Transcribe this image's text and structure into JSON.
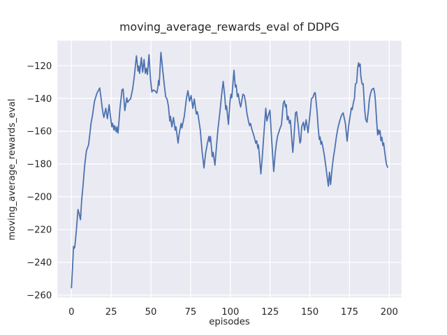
{
  "figure": {
    "title": "moving_average_rewards_eval of DDPG",
    "xlabel": "episodes",
    "ylabel": "moving_average_rewards_eval"
  },
  "chart_data": {
    "type": "line",
    "title": "moving_average_rewards_eval of DDPG",
    "xlabel": "episodes",
    "ylabel": "moving_average_rewards_eval",
    "grid": true,
    "legend_position": "none",
    "plot_bg_color": "#eaeaf2",
    "grid_color": "#ffffff",
    "line_color": "#4c72b0",
    "text_color": "#262626",
    "xlim": [
      -8.8,
      207.7
    ],
    "ylim": [
      -261.4,
      -104.8
    ],
    "x_ticks": {
      "values": [
        0,
        25,
        50,
        75,
        100,
        125,
        150,
        175,
        200
      ],
      "labels": [
        "0",
        "25",
        "50",
        "75",
        "100",
        "125",
        "150",
        "175",
        "200"
      ]
    },
    "y_ticks": {
      "values": [
        -120,
        -140,
        -160,
        -180,
        -200,
        -220,
        -240,
        -260
      ],
      "labels": [
        "−120",
        "−140",
        "−160",
        "−180",
        "−200",
        "−220",
        "−240",
        "−260"
      ]
    },
    "series": [
      {
        "name": "moving_average_rewards_eval",
        "points": [
          [
            0,
            -255.5
          ],
          [
            0.7,
            -243
          ],
          [
            1.3,
            -230.3
          ],
          [
            1.7,
            -231.5
          ],
          [
            2.1,
            -230.5
          ],
          [
            3,
            -221.5
          ],
          [
            4.1,
            -207.8
          ],
          [
            4.9,
            -210.5
          ],
          [
            5.7,
            -214
          ],
          [
            6.4,
            -202.3
          ],
          [
            7.3,
            -193
          ],
          [
            8.3,
            -181
          ],
          [
            9.4,
            -172
          ],
          [
            10,
            -170.4
          ],
          [
            10.8,
            -168.1
          ],
          [
            11.6,
            -161.5
          ],
          [
            12.3,
            -155.2
          ],
          [
            13.3,
            -150
          ],
          [
            14.5,
            -141.7
          ],
          [
            16,
            -136.9
          ],
          [
            17.8,
            -133.6
          ],
          [
            18.6,
            -139.6
          ],
          [
            19.2,
            -144.5
          ],
          [
            19.8,
            -148.8
          ],
          [
            20.4,
            -151.6
          ],
          [
            21.6,
            -146
          ],
          [
            22.6,
            -152.3
          ],
          [
            23.7,
            -143.8
          ],
          [
            24.5,
            -150.5
          ],
          [
            25.4,
            -157.3
          ],
          [
            25.9,
            -155.2
          ],
          [
            26.8,
            -159.4
          ],
          [
            27.2,
            -156.6
          ],
          [
            28.2,
            -160.4
          ],
          [
            28.6,
            -157.3
          ],
          [
            29.3,
            -161.2
          ],
          [
            30.5,
            -146.5
          ],
          [
            31.8,
            -134.8
          ],
          [
            32.5,
            -134.2
          ],
          [
            33.6,
            -147.4
          ],
          [
            34.8,
            -139.6
          ],
          [
            35.4,
            -142.4
          ],
          [
            36.3,
            -141
          ],
          [
            37.2,
            -140.3
          ],
          [
            38.5,
            -134.3
          ],
          [
            39.5,
            -127
          ],
          [
            40.9,
            -114
          ],
          [
            41.9,
            -123.3
          ],
          [
            42.4,
            -120.2
          ],
          [
            42.9,
            -124.7
          ],
          [
            44,
            -115
          ],
          [
            44.8,
            -124
          ],
          [
            45.7,
            -116.2
          ],
          [
            46.5,
            -124.7
          ],
          [
            47.1,
            -121.5
          ],
          [
            47.8,
            -125.4
          ],
          [
            48.8,
            -113.3
          ],
          [
            49.8,
            -128.9
          ],
          [
            50.6,
            -136
          ],
          [
            51.5,
            -134.8
          ],
          [
            52.5,
            -135.3
          ],
          [
            53.7,
            -136.7
          ],
          [
            54.4,
            -133.2
          ],
          [
            54.8,
            -129
          ],
          [
            55.2,
            -131.9
          ],
          [
            56.3,
            -111.9
          ],
          [
            56.9,
            -117.6
          ],
          [
            57.5,
            -123.3
          ],
          [
            58.6,
            -133.2
          ],
          [
            59.3,
            -139
          ],
          [
            60.2,
            -140.5
          ],
          [
            61,
            -144.5
          ],
          [
            61.9,
            -153.8
          ],
          [
            62.3,
            -150.9
          ],
          [
            63.2,
            -157.3
          ],
          [
            64.2,
            -151.6
          ],
          [
            65.3,
            -159.4
          ],
          [
            65.8,
            -157.3
          ],
          [
            67.1,
            -167.2
          ],
          [
            67.8,
            -161.6
          ],
          [
            69,
            -155.2
          ],
          [
            69.5,
            -158
          ],
          [
            70.4,
            -153.8
          ],
          [
            71,
            -150.9
          ],
          [
            72.4,
            -139.6
          ],
          [
            73.3,
            -135.3
          ],
          [
            74.3,
            -141.7
          ],
          [
            75.3,
            -138.2
          ],
          [
            76.4,
            -146
          ],
          [
            77.3,
            -140.3
          ],
          [
            78.6,
            -149.5
          ],
          [
            79.2,
            -148.1
          ],
          [
            79.7,
            -150.2
          ],
          [
            81.1,
            -159.4
          ],
          [
            82.2,
            -172.2
          ],
          [
            83.4,
            -182.4
          ],
          [
            84.4,
            -173.6
          ],
          [
            85.6,
            -167.2
          ],
          [
            86.5,
            -163.2
          ],
          [
            86.9,
            -166.3
          ],
          [
            87.5,
            -163.2
          ],
          [
            88.6,
            -175.5
          ],
          [
            89.2,
            -172.9
          ],
          [
            90.3,
            -180.7
          ],
          [
            91.2,
            -170.1
          ],
          [
            92.2,
            -158.7
          ],
          [
            93.4,
            -148.5
          ],
          [
            94.5,
            -138
          ],
          [
            95.5,
            -129.6
          ],
          [
            96.5,
            -138.9
          ],
          [
            97.1,
            -146.7
          ],
          [
            97.6,
            -144.5
          ],
          [
            98.8,
            -155.8
          ],
          [
            99.8,
            -141.5
          ],
          [
            100.4,
            -137.4
          ],
          [
            100.9,
            -139.6
          ],
          [
            102.3,
            -122.8
          ],
          [
            103.1,
            -133
          ],
          [
            103.7,
            -131.8
          ],
          [
            104.4,
            -138.9
          ],
          [
            105,
            -137.2
          ],
          [
            105.8,
            -142.4
          ],
          [
            106.5,
            -145.2
          ],
          [
            107.9,
            -137.4
          ],
          [
            108.8,
            -138.2
          ],
          [
            109.6,
            -142.4
          ],
          [
            110.4,
            -148.8
          ],
          [
            111.4,
            -153.8
          ],
          [
            112.1,
            -156.6
          ],
          [
            112.7,
            -155.2
          ],
          [
            113.5,
            -158.7
          ],
          [
            114.9,
            -163
          ],
          [
            116,
            -167.3
          ],
          [
            116.6,
            -165.8
          ],
          [
            117.3,
            -170.4
          ],
          [
            117.7,
            -168.4
          ],
          [
            118.3,
            -175
          ],
          [
            119.2,
            -186
          ],
          [
            120.1,
            -175.7
          ],
          [
            120.9,
            -164.4
          ],
          [
            121.6,
            -155.2
          ],
          [
            122.3,
            -146
          ],
          [
            123,
            -153.8
          ],
          [
            123.6,
            -151.3
          ],
          [
            124.9,
            -147.2
          ],
          [
            126,
            -165
          ],
          [
            127.3,
            -184.5
          ],
          [
            128.3,
            -172.9
          ],
          [
            129,
            -167.2
          ],
          [
            129.7,
            -163
          ],
          [
            131.2,
            -158.4
          ],
          [
            132.2,
            -155.9
          ],
          [
            133.3,
            -143.1
          ],
          [
            134,
            -141.4
          ],
          [
            134.7,
            -145.2
          ],
          [
            135.2,
            -143.8
          ],
          [
            135.8,
            -153
          ],
          [
            136.4,
            -150.9
          ],
          [
            137.2,
            -155.2
          ],
          [
            137.8,
            -153.3
          ],
          [
            139.3,
            -172.9
          ],
          [
            140,
            -164.4
          ],
          [
            141,
            -148.8
          ],
          [
            141.7,
            -148.1
          ],
          [
            142.8,
            -157.3
          ],
          [
            143.8,
            -167.2
          ],
          [
            144.3,
            -166
          ],
          [
            144.9,
            -157.3
          ],
          [
            146,
            -154.5
          ],
          [
            146.7,
            -159.4
          ],
          [
            147.7,
            -153
          ],
          [
            148.9,
            -160.9
          ],
          [
            150.3,
            -148.1
          ],
          [
            151,
            -140.3
          ],
          [
            152,
            -139.3
          ],
          [
            152.9,
            -136.7
          ],
          [
            153.4,
            -136.5
          ],
          [
            154.6,
            -148.1
          ],
          [
            155.3,
            -158
          ],
          [
            156,
            -165.1
          ],
          [
            156.5,
            -163.5
          ],
          [
            157,
            -167.9
          ],
          [
            157.5,
            -166.2
          ],
          [
            158.2,
            -169.4
          ],
          [
            159.2,
            -175
          ],
          [
            160,
            -180.7
          ],
          [
            161,
            -188.5
          ],
          [
            161.7,
            -193.5
          ],
          [
            162.4,
            -185
          ],
          [
            163.1,
            -192.5
          ],
          [
            164.1,
            -182.1
          ],
          [
            164.8,
            -176.5
          ],
          [
            165.7,
            -170.8
          ],
          [
            166.7,
            -163.7
          ],
          [
            167.7,
            -158
          ],
          [
            168.8,
            -153.8
          ],
          [
            170,
            -150.2
          ],
          [
            171,
            -148.8
          ],
          [
            172.4,
            -155.2
          ],
          [
            173.5,
            -166
          ],
          [
            174.5,
            -156.5
          ],
          [
            175.7,
            -148.7
          ],
          [
            176.2,
            -145.8
          ],
          [
            176.7,
            -146.8
          ],
          [
            177.5,
            -142.3
          ],
          [
            178.1,
            -140.1
          ],
          [
            178.7,
            -131.3
          ],
          [
            179.5,
            -130.5
          ],
          [
            180.1,
            -121.7
          ],
          [
            180.7,
            -118.2
          ],
          [
            181.2,
            -120.6
          ],
          [
            181.7,
            -119
          ],
          [
            182.1,
            -126
          ],
          [
            182.7,
            -130.2
          ],
          [
            183.1,
            -131.3
          ],
          [
            183.6,
            -131
          ],
          [
            184.1,
            -139.4
          ],
          [
            184.6,
            -147.2
          ],
          [
            185.2,
            -152.9
          ],
          [
            186,
            -154.5
          ],
          [
            186.9,
            -147.2
          ],
          [
            187.4,
            -141.5
          ],
          [
            188,
            -138
          ],
          [
            188.6,
            -135.9
          ],
          [
            189.1,
            -134.5
          ],
          [
            190.2,
            -133.8
          ],
          [
            190.8,
            -136.6
          ],
          [
            191.3,
            -141.5
          ],
          [
            192.1,
            -153.8
          ],
          [
            192.4,
            -158
          ],
          [
            192.7,
            -162.3
          ],
          [
            193.1,
            -159.1
          ],
          [
            193.7,
            -161.6
          ],
          [
            194.2,
            -159.6
          ],
          [
            194.8,
            -165.8
          ],
          [
            195.4,
            -163.7
          ],
          [
            196,
            -168.7
          ],
          [
            196.5,
            -167.2
          ],
          [
            197.1,
            -172.2
          ],
          [
            197.7,
            -176.5
          ],
          [
            198.2,
            -180
          ],
          [
            199,
            -182
          ]
        ]
      }
    ]
  }
}
